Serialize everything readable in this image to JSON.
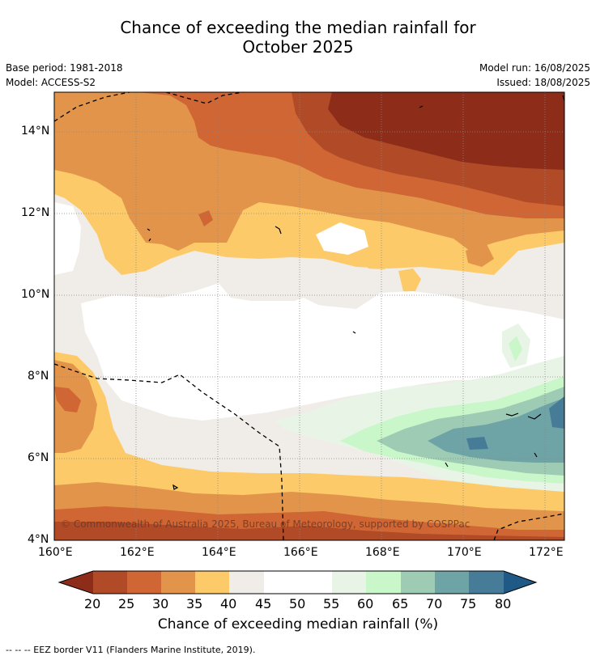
{
  "title": {
    "line1": "Chance of exceeding the median rainfall for",
    "line2": "October 2025"
  },
  "meta": {
    "base_period": "Base period: 1981-2018",
    "model": "Model: ACCESS-S2",
    "model_run": "Model run: 16/08/2025",
    "issued": "Issued: 18/08/2025"
  },
  "map": {
    "lon_ticks": [
      "160°E",
      "162°E",
      "164°E",
      "166°E",
      "168°E",
      "170°E",
      "172°E"
    ],
    "lat_ticks": [
      "14°N",
      "12°N",
      "10°N",
      "8°N",
      "6°N",
      "4°N"
    ],
    "copyright": "© Commonwealth of Australia 2025, Bureau of Meteorology, supported by COSPPac"
  },
  "colorbar": {
    "ticks": [
      "20",
      "25",
      "30",
      "35",
      "40",
      "45",
      "50",
      "55",
      "60",
      "65",
      "70",
      "75",
      "80"
    ],
    "colors": {
      "below20": "#8d2c19",
      "c20_25": "#b04a27",
      "c25_30": "#cf6634",
      "c30_35": "#e2954a",
      "c35_40": "#fdca6a",
      "c40_45": "#f0ece8",
      "c45_50": "#ffffff",
      "c50_55": "#ffffff",
      "c55_60": "#e8f5e6",
      "c60_65": "#c9f7c9",
      "c65_70": "#9ecbb4",
      "c70_75": "#6fa4a6",
      "c75_80": "#477c98",
      "above80": "#1f5a86"
    },
    "label": "Chance of exceeding median rainfall (%)"
  },
  "footnote": "-- -- -- EEZ border V11 (Flanders Marine Institute, 2019)."
}
